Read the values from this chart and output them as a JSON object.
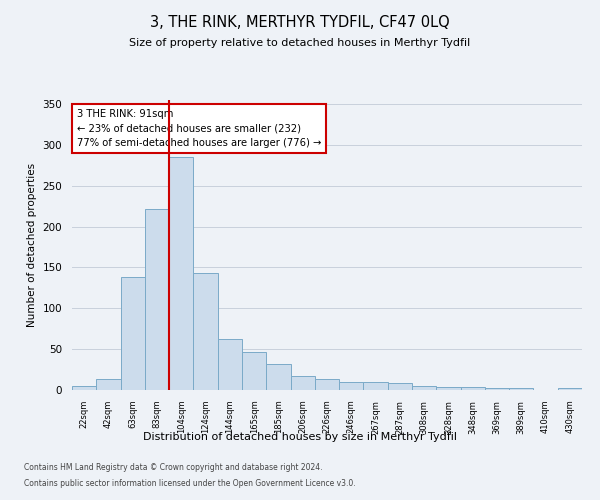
{
  "title": "3, THE RINK, MERTHYR TYDFIL, CF47 0LQ",
  "subtitle": "Size of property relative to detached houses in Merthyr Tydfil",
  "xlabel": "Distribution of detached houses by size in Merthyr Tydfil",
  "ylabel": "Number of detached properties",
  "categories": [
    "22sqm",
    "42sqm",
    "63sqm",
    "83sqm",
    "104sqm",
    "124sqm",
    "144sqm",
    "165sqm",
    "185sqm",
    "206sqm",
    "226sqm",
    "246sqm",
    "267sqm",
    "287sqm",
    "308sqm",
    "328sqm",
    "348sqm",
    "369sqm",
    "389sqm",
    "410sqm",
    "430sqm"
  ],
  "values": [
    5,
    14,
    138,
    222,
    285,
    143,
    63,
    46,
    32,
    17,
    14,
    10,
    10,
    8,
    5,
    4,
    4,
    3,
    2,
    0,
    2
  ],
  "bar_color": "#ccdcec",
  "bar_edge_color": "#7aaac8",
  "vline_color": "#cc0000",
  "annotation_title": "3 THE RINK: 91sqm",
  "annotation_line1": "← 23% of detached houses are smaller (232)",
  "annotation_line2": "77% of semi-detached houses are larger (776) →",
  "annotation_box_color": "#ffffff",
  "annotation_box_edge": "#cc0000",
  "ylim": [
    0,
    355
  ],
  "yticks": [
    0,
    50,
    100,
    150,
    200,
    250,
    300,
    350
  ],
  "footer1": "Contains HM Land Registry data © Crown copyright and database right 2024.",
  "footer2": "Contains public sector information licensed under the Open Government Licence v3.0.",
  "bg_color": "#eef2f7",
  "grid_color": "#c8d0dc"
}
